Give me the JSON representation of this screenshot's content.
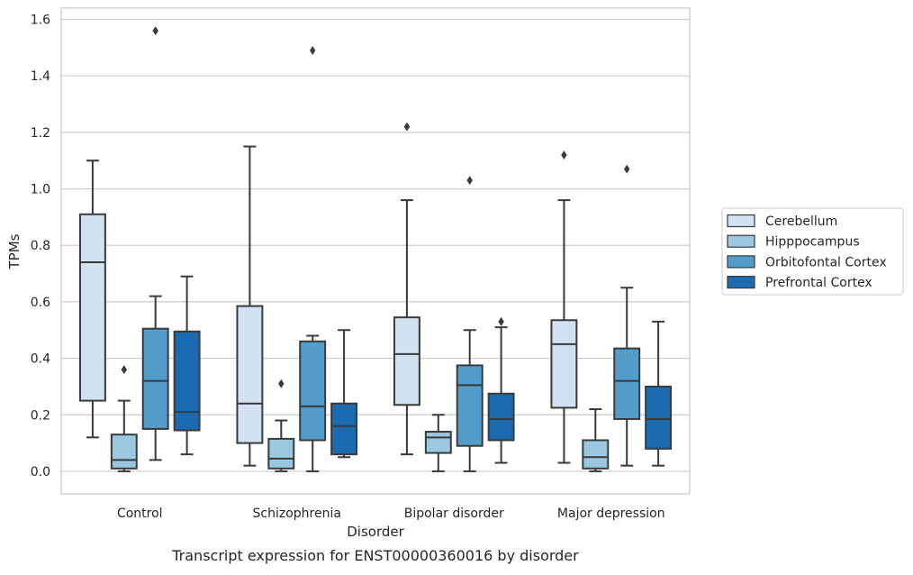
{
  "chart_data": {
    "type": "box",
    "title": "",
    "caption": "Transcript expression for ENST00000360016 by disorder",
    "xlabel": "Disorder",
    "ylabel": "TPMs",
    "ylim": [
      -0.08,
      1.64
    ],
    "yticks": [
      "0.0",
      "0.2",
      "0.4",
      "0.6",
      "0.8",
      "1.0",
      "1.2",
      "1.4",
      "1.6"
    ],
    "grid": "horizontal",
    "legend_position": "right",
    "categories": [
      "Control",
      "Schizophrenia",
      "Bipolar disorder",
      "Major depression"
    ],
    "series": [
      {
        "name": "Cerebellum",
        "color": "#d2e2f1",
        "boxes": [
          {
            "whislo": 0.12,
            "q1": 0.25,
            "med": 0.74,
            "q3": 0.91,
            "whishi": 1.1,
            "fliers": []
          },
          {
            "whislo": 0.02,
            "q1": 0.1,
            "med": 0.24,
            "q3": 0.585,
            "whishi": 1.15,
            "fliers": []
          },
          {
            "whislo": 0.06,
            "q1": 0.235,
            "med": 0.415,
            "q3": 0.545,
            "whishi": 0.96,
            "fliers": [
              1.22
            ]
          },
          {
            "whislo": 0.03,
            "q1": 0.225,
            "med": 0.45,
            "q3": 0.535,
            "whishi": 0.96,
            "fliers": [
              1.12
            ]
          }
        ]
      },
      {
        "name": "Hipppocampus",
        "color": "#9ac8e0",
        "boxes": [
          {
            "whislo": 0.0,
            "q1": 0.01,
            "med": 0.04,
            "q3": 0.13,
            "whishi": 0.25,
            "fliers": [
              0.36
            ]
          },
          {
            "whislo": 0.0,
            "q1": 0.01,
            "med": 0.045,
            "q3": 0.115,
            "whishi": 0.18,
            "fliers": [
              0.31
            ]
          },
          {
            "whislo": 0.0,
            "q1": 0.065,
            "med": 0.12,
            "q3": 0.14,
            "whishi": 0.2,
            "fliers": []
          },
          {
            "whislo": 0.0,
            "q1": 0.01,
            "med": 0.05,
            "q3": 0.11,
            "whishi": 0.22,
            "fliers": []
          }
        ]
      },
      {
        "name": "Orbitofontal Cortex",
        "color": "#529dcc",
        "boxes": [
          {
            "whislo": 0.04,
            "q1": 0.15,
            "med": 0.32,
            "q3": 0.505,
            "whishi": 0.62,
            "fliers": [
              1.56
            ]
          },
          {
            "whislo": 0.0,
            "q1": 0.11,
            "med": 0.23,
            "q3": 0.46,
            "whishi": 0.48,
            "fliers": [
              1.49
            ]
          },
          {
            "whislo": 0.0,
            "q1": 0.09,
            "med": 0.305,
            "q3": 0.375,
            "whishi": 0.5,
            "fliers": [
              1.03
            ]
          },
          {
            "whislo": 0.02,
            "q1": 0.185,
            "med": 0.32,
            "q3": 0.435,
            "whishi": 0.65,
            "fliers": [
              1.07
            ]
          }
        ]
      },
      {
        "name": "Prefrontal Cortex",
        "color": "#1c6aaf",
        "boxes": [
          {
            "whislo": 0.06,
            "q1": 0.145,
            "med": 0.21,
            "q3": 0.495,
            "whishi": 0.69,
            "fliers": []
          },
          {
            "whislo": 0.05,
            "q1": 0.06,
            "med": 0.16,
            "q3": 0.24,
            "whishi": 0.5,
            "fliers": []
          },
          {
            "whislo": 0.03,
            "q1": 0.11,
            "med": 0.185,
            "q3": 0.275,
            "whishi": 0.51,
            "fliers": [
              0.53
            ]
          },
          {
            "whislo": 0.02,
            "q1": 0.08,
            "med": 0.185,
            "q3": 0.3,
            "whishi": 0.53,
            "fliers": []
          }
        ]
      }
    ]
  }
}
